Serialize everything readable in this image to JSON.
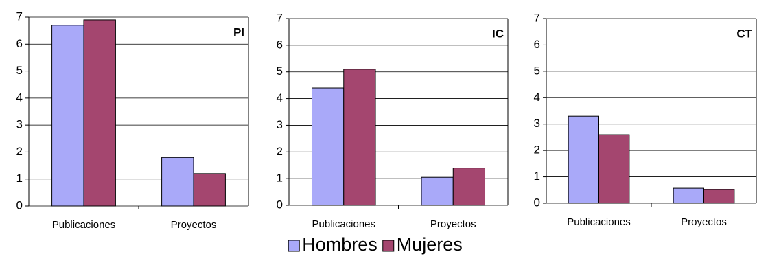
{
  "legend": [
    {
      "name": "Hombres",
      "color": "#a9a9f9"
    },
    {
      "name": "Mujeres",
      "color": "#a4466f"
    }
  ],
  "chart_data": [
    {
      "type": "bar",
      "title": "PI",
      "categories": [
        "Publicaciones",
        "Proyectos"
      ],
      "series": [
        {
          "values": [
            6.7,
            1.8
          ]
        },
        {
          "values": [
            6.9,
            1.2
          ]
        }
      ],
      "ylim": [
        0,
        7
      ],
      "yticks": [
        0,
        1,
        2,
        3,
        4,
        5,
        6,
        7
      ],
      "grid": true
    },
    {
      "type": "bar",
      "title": "IC",
      "categories": [
        "Publicaciones",
        "Proyectos"
      ],
      "series": [
        {
          "values": [
            4.4,
            1.05
          ]
        },
        {
          "values": [
            5.1,
            1.4
          ]
        }
      ],
      "ylim": [
        0,
        7
      ],
      "yticks": [
        0,
        1,
        2,
        3,
        4,
        5,
        6,
        7
      ],
      "grid": true
    },
    {
      "type": "bar",
      "title": "CT",
      "categories": [
        "Publicaciones",
        "Proyectos"
      ],
      "series": [
        {
          "values": [
            3.3,
            0.57
          ]
        },
        {
          "values": [
            2.6,
            0.52
          ]
        }
      ],
      "ylim": [
        0,
        7
      ],
      "yticks": [
        0,
        1,
        2,
        3,
        4,
        5,
        6,
        7
      ],
      "grid": true
    }
  ]
}
